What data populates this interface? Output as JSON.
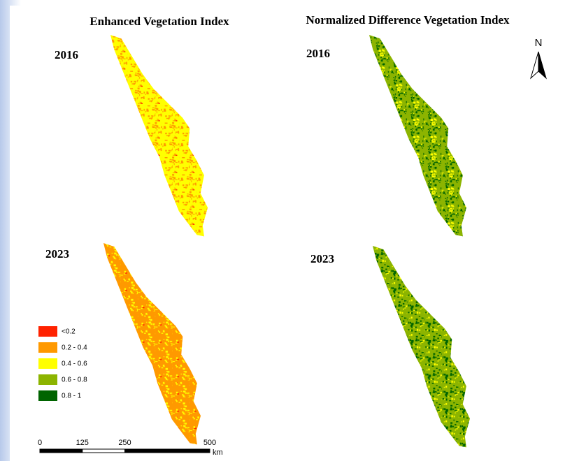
{
  "evi_title": "Enhanced Vegetation Index",
  "ndvi_title": "Normalized Difference Vegetation Index",
  "years": [
    "2016",
    "2016",
    "2023",
    "2023"
  ],
  "legend": {
    "items": [
      {
        "label": "<0.2",
        "color": "#ff2200"
      },
      {
        "label": "0.2 - 0.4",
        "color": "#ff9900"
      },
      {
        "label": "0.4 - 0.6",
        "color": "#ffff00"
      },
      {
        "label": "0.6 - 0.8",
        "color": "#8cb400"
      },
      {
        "label": "0.8 - 1",
        "color": "#006400"
      }
    ]
  },
  "scale_bar": {
    "ticks": [
      0,
      125,
      250,
      500
    ],
    "unit": "km"
  },
  "north_arrow": "N"
}
